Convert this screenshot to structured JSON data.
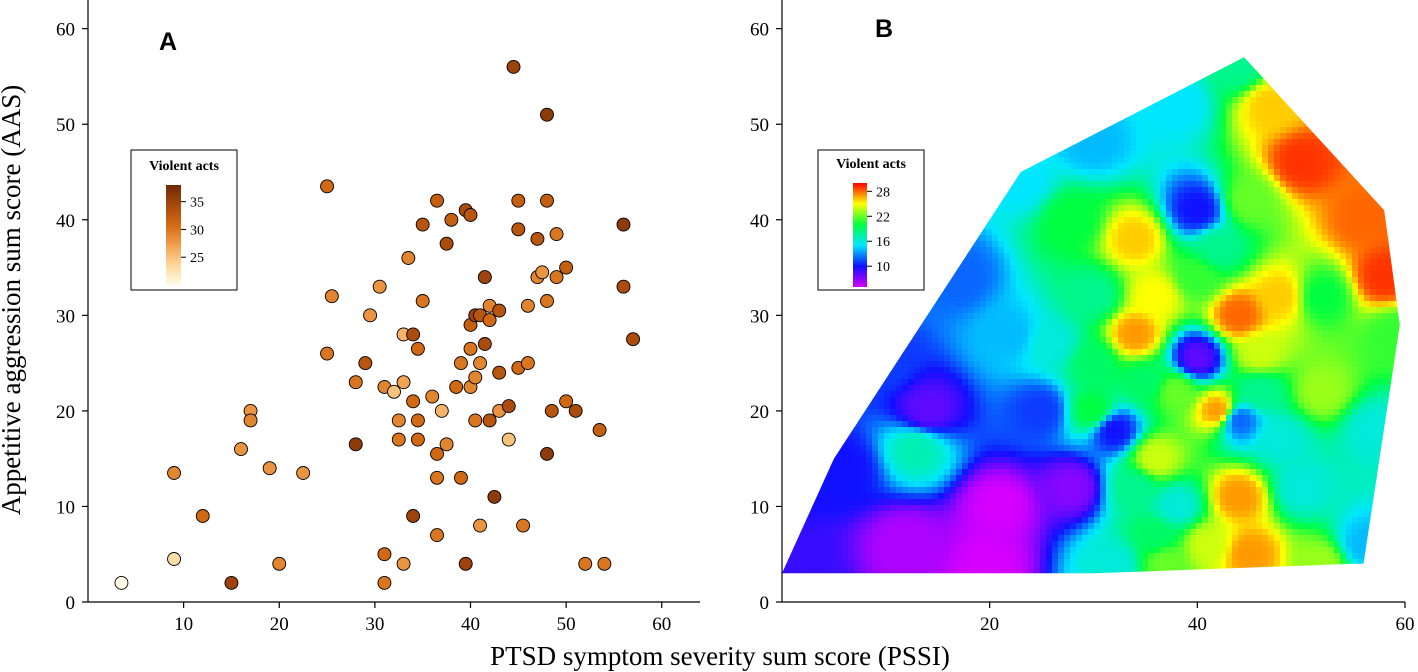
{
  "chart_data": [
    {
      "type": "scatter",
      "panel": "A",
      "xlabel": "PTSD symptom severity sum score (PSSI)",
      "ylabel": "Appetitive aggression sum score (AAS)",
      "xlim": [
        0,
        64
      ],
      "ylim": [
        0,
        63
      ],
      "x_ticks": [
        10,
        20,
        30,
        40,
        50,
        60
      ],
      "y_ticks": [
        0,
        10,
        20,
        30,
        40,
        50,
        60
      ],
      "grid": false,
      "colorbar": {
        "title": "Violent acts",
        "ticks": [
          25,
          30,
          35
        ],
        "range": [
          20,
          38
        ],
        "colors": [
          "#fffbe6",
          "#fdd89a",
          "#f0a050",
          "#d46a12",
          "#a6480c",
          "#6e2a06"
        ]
      },
      "points": [
        {
          "x": 3.5,
          "y": 2,
          "c": 20
        },
        {
          "x": 9,
          "y": 4.5,
          "c": 23
        },
        {
          "x": 9,
          "y": 13.5,
          "c": 29
        },
        {
          "x": 12,
          "y": 9,
          "c": 31
        },
        {
          "x": 15,
          "y": 2,
          "c": 35
        },
        {
          "x": 16,
          "y": 16,
          "c": 28
        },
        {
          "x": 17,
          "y": 20,
          "c": 28
        },
        {
          "x": 17,
          "y": 19,
          "c": 29
        },
        {
          "x": 19,
          "y": 14,
          "c": 28
        },
        {
          "x": 20,
          "y": 4,
          "c": 29
        },
        {
          "x": 22.5,
          "y": 13.5,
          "c": 28
        },
        {
          "x": 25,
          "y": 43.5,
          "c": 31
        },
        {
          "x": 25,
          "y": 26,
          "c": 30
        },
        {
          "x": 25.5,
          "y": 32,
          "c": 29
        },
        {
          "x": 28,
          "y": 23,
          "c": 30
        },
        {
          "x": 28,
          "y": 16.5,
          "c": 36
        },
        {
          "x": 29,
          "y": 25,
          "c": 33
        },
        {
          "x": 29.5,
          "y": 30,
          "c": 28
        },
        {
          "x": 30.5,
          "y": 33,
          "c": 28
        },
        {
          "x": 31,
          "y": 5,
          "c": 31
        },
        {
          "x": 31,
          "y": 2,
          "c": 30
        },
        {
          "x": 31,
          "y": 22.5,
          "c": 29
        },
        {
          "x": 32,
          "y": 22,
          "c": 25
        },
        {
          "x": 32.5,
          "y": 19,
          "c": 29
        },
        {
          "x": 32.5,
          "y": 17,
          "c": 30
        },
        {
          "x": 33,
          "y": 28,
          "c": 26
        },
        {
          "x": 33,
          "y": 23,
          "c": 27
        },
        {
          "x": 33.5,
          "y": 36,
          "c": 29
        },
        {
          "x": 33,
          "y": 4,
          "c": 28
        },
        {
          "x": 34,
          "y": 28,
          "c": 34
        },
        {
          "x": 34,
          "y": 9,
          "c": 35
        },
        {
          "x": 34,
          "y": 21,
          "c": 31
        },
        {
          "x": 34.5,
          "y": 19,
          "c": 31
        },
        {
          "x": 34.5,
          "y": 17,
          "c": 31
        },
        {
          "x": 34.5,
          "y": 26.5,
          "c": 31
        },
        {
          "x": 35,
          "y": 39.5,
          "c": 33
        },
        {
          "x": 35,
          "y": 31.5,
          "c": 30
        },
        {
          "x": 36,
          "y": 21.5,
          "c": 29
        },
        {
          "x": 36.5,
          "y": 15.5,
          "c": 31
        },
        {
          "x": 36.5,
          "y": 13,
          "c": 30
        },
        {
          "x": 36.5,
          "y": 7,
          "c": 30
        },
        {
          "x": 36.5,
          "y": 42,
          "c": 32
        },
        {
          "x": 37,
          "y": 20,
          "c": 26
        },
        {
          "x": 37.5,
          "y": 16.5,
          "c": 29
        },
        {
          "x": 37.5,
          "y": 37.5,
          "c": 34
        },
        {
          "x": 38,
          "y": 40,
          "c": 32
        },
        {
          "x": 38.5,
          "y": 22.5,
          "c": 31
        },
        {
          "x": 39,
          "y": 25,
          "c": 30
        },
        {
          "x": 39,
          "y": 13,
          "c": 31
        },
        {
          "x": 39.5,
          "y": 4,
          "c": 35
        },
        {
          "x": 39.5,
          "y": 41,
          "c": 34
        },
        {
          "x": 40,
          "y": 40.5,
          "c": 33
        },
        {
          "x": 40,
          "y": 29,
          "c": 32
        },
        {
          "x": 40,
          "y": 22.5,
          "c": 29
        },
        {
          "x": 40,
          "y": 26.5,
          "c": 30
        },
        {
          "x": 40.5,
          "y": 30,
          "c": 35
        },
        {
          "x": 40.5,
          "y": 23.5,
          "c": 29
        },
        {
          "x": 40.5,
          "y": 19,
          "c": 30
        },
        {
          "x": 41,
          "y": 25,
          "c": 29
        },
        {
          "x": 41,
          "y": 8,
          "c": 28
        },
        {
          "x": 41,
          "y": 30,
          "c": 33
        },
        {
          "x": 41.5,
          "y": 34,
          "c": 35
        },
        {
          "x": 41.5,
          "y": 27,
          "c": 34
        },
        {
          "x": 42,
          "y": 19,
          "c": 33
        },
        {
          "x": 42,
          "y": 29.5,
          "c": 31
        },
        {
          "x": 42,
          "y": 31,
          "c": 29
        },
        {
          "x": 42.5,
          "y": 11,
          "c": 36
        },
        {
          "x": 43,
          "y": 24,
          "c": 33
        },
        {
          "x": 43,
          "y": 20,
          "c": 28
        },
        {
          "x": 43,
          "y": 30.5,
          "c": 33
        },
        {
          "x": 44,
          "y": 17,
          "c": 25
        },
        {
          "x": 44.5,
          "y": 56,
          "c": 35
        },
        {
          "x": 44,
          "y": 20.5,
          "c": 34
        },
        {
          "x": 45,
          "y": 42,
          "c": 32
        },
        {
          "x": 45,
          "y": 39,
          "c": 33
        },
        {
          "x": 45,
          "y": 24.5,
          "c": 31
        },
        {
          "x": 45.5,
          "y": 8,
          "c": 30
        },
        {
          "x": 46,
          "y": 31,
          "c": 29
        },
        {
          "x": 46,
          "y": 25,
          "c": 30
        },
        {
          "x": 47,
          "y": 38,
          "c": 33
        },
        {
          "x": 47,
          "y": 34,
          "c": 29
        },
        {
          "x": 47.5,
          "y": 34.5,
          "c": 28
        },
        {
          "x": 48,
          "y": 51,
          "c": 36
        },
        {
          "x": 48,
          "y": 42,
          "c": 32
        },
        {
          "x": 48,
          "y": 31.5,
          "c": 30
        },
        {
          "x": 48,
          "y": 15.5,
          "c": 36
        },
        {
          "x": 48.5,
          "y": 20,
          "c": 33
        },
        {
          "x": 49,
          "y": 38.5,
          "c": 30
        },
        {
          "x": 49,
          "y": 34,
          "c": 30
        },
        {
          "x": 50,
          "y": 35,
          "c": 32
        },
        {
          "x": 50,
          "y": 21,
          "c": 31
        },
        {
          "x": 51,
          "y": 20,
          "c": 34
        },
        {
          "x": 52,
          "y": 4,
          "c": 30
        },
        {
          "x": 53.5,
          "y": 18,
          "c": 32
        },
        {
          "x": 54,
          "y": 4,
          "c": 30
        },
        {
          "x": 56,
          "y": 33,
          "c": 34
        },
        {
          "x": 56,
          "y": 39.5,
          "c": 36
        },
        {
          "x": 57,
          "y": 27.5,
          "c": 34
        }
      ]
    },
    {
      "type": "heatmap",
      "panel": "B",
      "xlabel": "PTSD symptom severity sum score (PSSI)",
      "ylabel": "Appetitive aggression sum score (AAS)",
      "xlim": [
        0,
        60
      ],
      "ylim": [
        0,
        63
      ],
      "x_ticks": [
        20,
        40,
        60
      ],
      "y_ticks": [
        0,
        10,
        20,
        30,
        40,
        50,
        60
      ],
      "grid": false,
      "colorbar": {
        "title": "Violent acts",
        "ticks": [
          10,
          16,
          22,
          28
        ],
        "range": [
          5,
          30
        ],
        "colors": [
          "#d600ff",
          "#1010ff",
          "#00e6ff",
          "#00ff40",
          "#ffff00",
          "#ff0000"
        ]
      },
      "hull": [
        [
          0,
          3
        ],
        [
          5,
          15
        ],
        [
          23,
          45
        ],
        [
          44.5,
          57
        ],
        [
          58,
          41
        ],
        [
          59.5,
          29
        ],
        [
          56,
          4
        ],
        [
          55,
          4
        ],
        [
          30,
          3
        ]
      ],
      "surface_points": [
        {
          "x": 2,
          "y": 3,
          "c": 9
        },
        {
          "x": 6,
          "y": 14,
          "c": 10
        },
        {
          "x": 13,
          "y": 16,
          "c": 17
        },
        {
          "x": 14,
          "y": 20,
          "c": 8
        },
        {
          "x": 10,
          "y": 25,
          "c": 11
        },
        {
          "x": 17,
          "y": 34,
          "c": 12
        },
        {
          "x": 23,
          "y": 44,
          "c": 15
        },
        {
          "x": 30,
          "y": 48,
          "c": 14
        },
        {
          "x": 38,
          "y": 52,
          "c": 15
        },
        {
          "x": 44,
          "y": 56,
          "c": 18
        },
        {
          "x": 47,
          "y": 52,
          "c": 26
        },
        {
          "x": 50,
          "y": 46,
          "c": 29
        },
        {
          "x": 56,
          "y": 40,
          "c": 28
        },
        {
          "x": 58,
          "y": 34,
          "c": 29
        },
        {
          "x": 59,
          "y": 28,
          "c": 21
        },
        {
          "x": 57,
          "y": 18,
          "c": 16
        },
        {
          "x": 56,
          "y": 6,
          "c": 14
        },
        {
          "x": 52,
          "y": 4,
          "c": 23
        },
        {
          "x": 45,
          "y": 5,
          "c": 27
        },
        {
          "x": 37,
          "y": 4,
          "c": 22
        },
        {
          "x": 32,
          "y": 4,
          "c": 16
        },
        {
          "x": 20,
          "y": 4,
          "c": 5
        },
        {
          "x": 12,
          "y": 6,
          "c": 6
        },
        {
          "x": 21,
          "y": 10,
          "c": 5
        },
        {
          "x": 28,
          "y": 12,
          "c": 7
        },
        {
          "x": 30,
          "y": 20,
          "c": 20
        },
        {
          "x": 26,
          "y": 27,
          "c": 16
        },
        {
          "x": 30,
          "y": 32,
          "c": 18
        },
        {
          "x": 34,
          "y": 38,
          "c": 26
        },
        {
          "x": 28,
          "y": 40,
          "c": 20
        },
        {
          "x": 40,
          "y": 41,
          "c": 10
        },
        {
          "x": 42,
          "y": 37,
          "c": 18
        },
        {
          "x": 45,
          "y": 42,
          "c": 22
        },
        {
          "x": 40,
          "y": 34,
          "c": 21
        },
        {
          "x": 36,
          "y": 32,
          "c": 25
        },
        {
          "x": 34,
          "y": 28,
          "c": 27
        },
        {
          "x": 40,
          "y": 25.5,
          "c": 8
        },
        {
          "x": 44,
          "y": 30,
          "c": 28
        },
        {
          "x": 48,
          "y": 32,
          "c": 26
        },
        {
          "x": 52,
          "y": 32,
          "c": 20
        },
        {
          "x": 38,
          "y": 22,
          "c": 22
        },
        {
          "x": 42,
          "y": 20,
          "c": 27
        },
        {
          "x": 46,
          "y": 22,
          "c": 18
        },
        {
          "x": 44,
          "y": 19,
          "c": 12
        },
        {
          "x": 48,
          "y": 17,
          "c": 16
        },
        {
          "x": 32,
          "y": 18,
          "c": 10
        },
        {
          "x": 36,
          "y": 15,
          "c": 24
        },
        {
          "x": 34,
          "y": 12,
          "c": 18
        },
        {
          "x": 38,
          "y": 10,
          "c": 16
        },
        {
          "x": 44,
          "y": 11,
          "c": 27
        },
        {
          "x": 50,
          "y": 12,
          "c": 16
        },
        {
          "x": 41,
          "y": 6,
          "c": 24
        },
        {
          "x": 36,
          "y": 7,
          "c": 19
        },
        {
          "x": 52,
          "y": 22,
          "c": 23
        },
        {
          "x": 46,
          "y": 26,
          "c": 24
        },
        {
          "x": 35,
          "y": 23,
          "c": 19
        },
        {
          "x": 30,
          "y": 25,
          "c": 19
        },
        {
          "x": 25,
          "y": 20,
          "c": 11
        },
        {
          "x": 22,
          "y": 28,
          "c": 14
        }
      ]
    }
  ]
}
